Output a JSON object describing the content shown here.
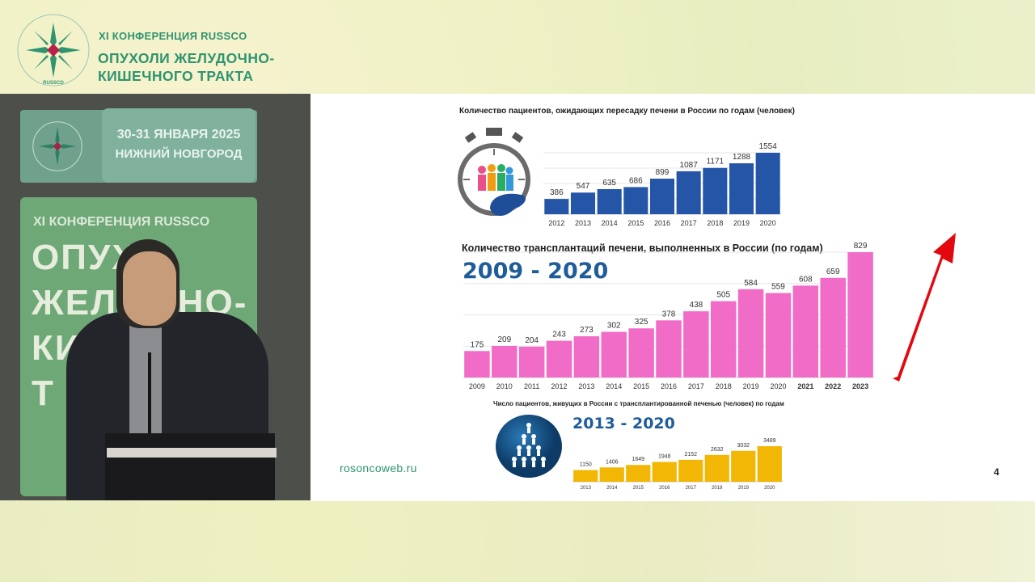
{
  "header": {
    "conference": "XI КОНФЕРЕНЦИЯ RUSSCO",
    "title_line1": "ОПУХОЛИ ЖЕЛУДОЧНО-",
    "title_line2": "КИШЕЧНОГО ТРАКТА",
    "logo_ring_text": "RUSSCO"
  },
  "video": {
    "date": "30-31 ЯНВАРЯ 2025",
    "city": "НИЖНИЙ НОВГОРОД",
    "banner_conf": "XI КОНФЕРЕНЦИЯ RUSSCO",
    "banner_big1": "ОПУХО",
    "banner_big2": "ЖЕЛУД НО-",
    "banner_big3": "КИ",
    "banner_big4": "Т"
  },
  "slide": {
    "footer_url": "rosoncoweb.ru",
    "page_number": "4"
  },
  "colors": {
    "blue": "#2455a6",
    "pink": "#f06cc6",
    "gold": "#f2b705",
    "arrow": "#e3080f",
    "brand": "#2f9470"
  },
  "chart_data": [
    {
      "type": "bar",
      "title": "Количество пациентов, ожидающих пересадку печени в России по годам (человек)",
      "categories": [
        "2012",
        "2013",
        "2014",
        "2015",
        "2016",
        "2017",
        "2018",
        "2019",
        "2020"
      ],
      "values": [
        386,
        547,
        635,
        686,
        899,
        1087,
        1171,
        1288,
        1554
      ],
      "color": "#2455a6",
      "grid": true,
      "icon": "stopwatch-patients-liver-icon"
    },
    {
      "type": "bar",
      "title": "Количество трансплантаций печени, выполненных в России (по годам)",
      "subtitle": "2009 - 2020",
      "categories": [
        "2009",
        "2010",
        "2011",
        "2012",
        "2013",
        "2014",
        "2015",
        "2016",
        "2017",
        "2018",
        "2019",
        "2020",
        "2021",
        "2022",
        "2023"
      ],
      "bold_categories": [
        "2021",
        "2022",
        "2023"
      ],
      "values": [
        175,
        209,
        204,
        243,
        273,
        302,
        325,
        378,
        438,
        505,
        584,
        559,
        608,
        659,
        829
      ],
      "color": "#f06cc6",
      "grid": true,
      "icon": "red-up-arrow-icon"
    },
    {
      "type": "bar",
      "title": "Число пациентов, живущих в России с трансплантированной печенью (человек) по годам",
      "subtitle": "2013 - 2020",
      "categories": [
        "2013",
        "2014",
        "2015",
        "2016",
        "2017",
        "2018",
        "2019",
        "2020"
      ],
      "values": [
        1150,
        1406,
        1649,
        1948,
        2152,
        2632,
        3032,
        3489
      ],
      "color": "#f2b705",
      "grid": false,
      "icon": "people-pyramid-icon"
    }
  ]
}
